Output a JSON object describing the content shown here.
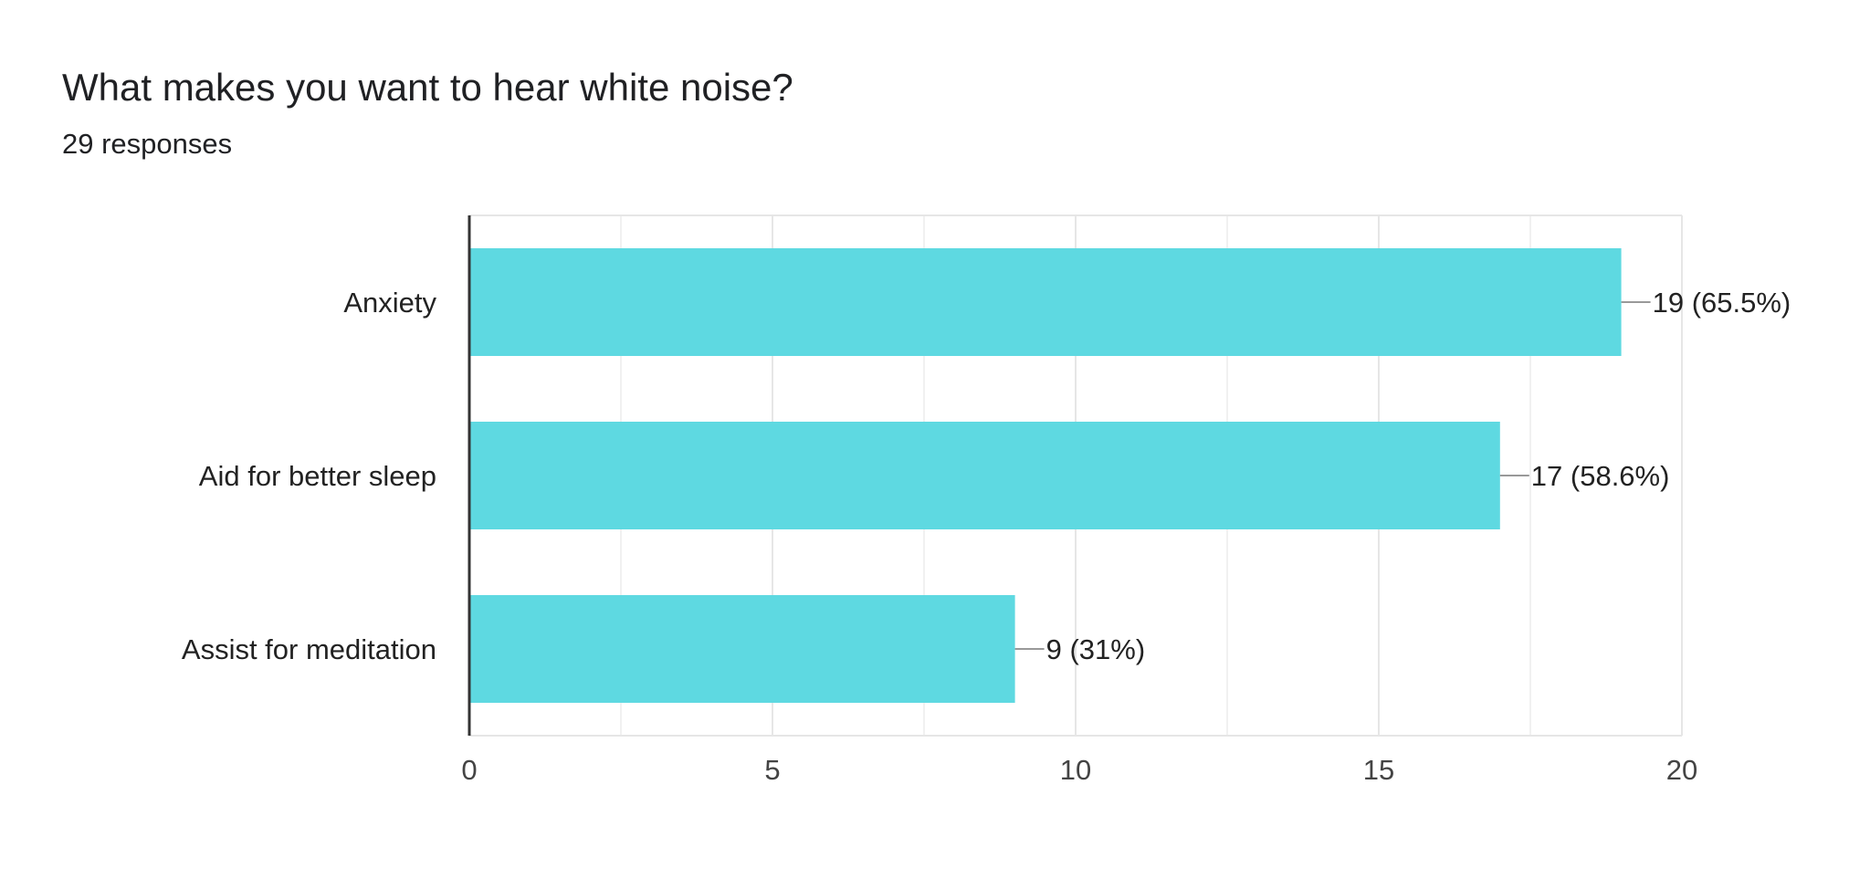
{
  "chart_data": {
    "type": "bar",
    "orientation": "horizontal",
    "title": "What makes you want to hear white noise?",
    "subtitle": "29 responses",
    "categories": [
      "Anxiety",
      "Aid for better sleep",
      "Assist for meditation"
    ],
    "values": [
      19,
      17,
      9
    ],
    "data_labels": [
      "19 (65.5%)",
      "17 (58.6%)",
      "9 (31%)"
    ],
    "xlim": [
      0,
      20
    ],
    "x_ticks": [
      0,
      5,
      10,
      15,
      20
    ],
    "x_tick_labels": [
      "0",
      "5",
      "10",
      "15",
      "20"
    ],
    "grid": true,
    "xlabel": "",
    "ylabel": "",
    "bar_color": "#5ed9e1"
  }
}
